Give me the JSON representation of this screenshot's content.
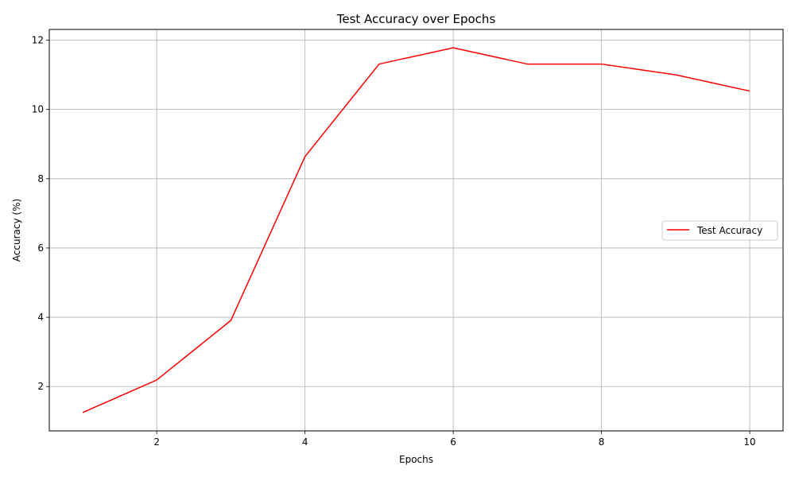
{
  "chart_data": {
    "type": "line",
    "title": "Test Accuracy over Epochs",
    "xlabel": "Epochs",
    "ylabel": "Accuracy (%)",
    "x": [
      1,
      2,
      3,
      4,
      5,
      6,
      7,
      8,
      9,
      10
    ],
    "series": [
      {
        "name": "Test Accuracy",
        "color": "#ff0000",
        "values": [
          1.25,
          2.19,
          3.91,
          8.64,
          11.31,
          11.78,
          11.31,
          11.31,
          11.0,
          10.53
        ]
      }
    ],
    "xlim": [
      0.55,
      10.45
    ],
    "ylim": [
      0.72,
      12.31
    ],
    "xticks": [
      2,
      4,
      6,
      8,
      10
    ],
    "yticks": [
      2,
      4,
      6,
      8,
      10,
      12
    ],
    "grid": true,
    "legend_position": "center-right"
  }
}
